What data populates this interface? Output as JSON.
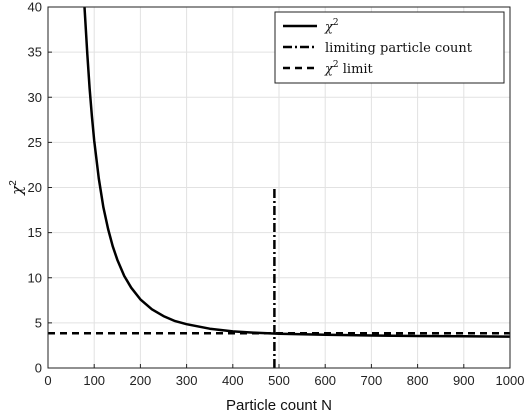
{
  "chart_data": {
    "type": "line",
    "xlabel": "Particle count N",
    "ylabel": "χ",
    "ylabel_superscript": "2",
    "xlim": [
      0,
      1000
    ],
    "ylim": [
      0,
      40
    ],
    "xticks": [
      "0",
      "100",
      "200",
      "300",
      "400",
      "500",
      "600",
      "700",
      "800",
      "900",
      "1000"
    ],
    "yticks": [
      "0",
      "5",
      "10",
      "15",
      "20",
      "25",
      "30",
      "35",
      "40"
    ],
    "grid": true,
    "legend_position": "top-right",
    "legend": [
      {
        "text": "χ",
        "sup": "2",
        "style": "solid"
      },
      {
        "text": "limiting particle count",
        "sup": "",
        "style": "dashdot"
      },
      {
        "text": "χ",
        "sup": "2",
        "suffix": " limit",
        "style": "dashed"
      }
    ],
    "series": [
      {
        "name": "χ2",
        "style": "solid",
        "x": [
          79,
          85,
          90,
          95,
          100,
          110,
          120,
          130,
          140,
          150,
          165,
          180,
          200,
          225,
          250,
          275,
          300,
          350,
          400,
          450,
          500,
          600,
          700,
          800,
          900,
          1000
        ],
        "y": [
          40.0,
          34.8,
          31.0,
          27.9,
          25.2,
          21.0,
          17.8,
          15.4,
          13.5,
          12.0,
          10.2,
          8.9,
          7.6,
          6.5,
          5.75,
          5.2,
          4.85,
          4.35,
          4.05,
          3.9,
          3.8,
          3.68,
          3.6,
          3.55,
          3.52,
          3.48
        ]
      },
      {
        "name": "limiting particle count",
        "style": "dashdot",
        "x": [
          490,
          490
        ],
        "y": [
          0,
          20
        ]
      },
      {
        "name": "χ2 limit",
        "style": "dashed",
        "x": [
          0,
          1000
        ],
        "y": [
          3.84,
          3.84
        ]
      }
    ]
  }
}
